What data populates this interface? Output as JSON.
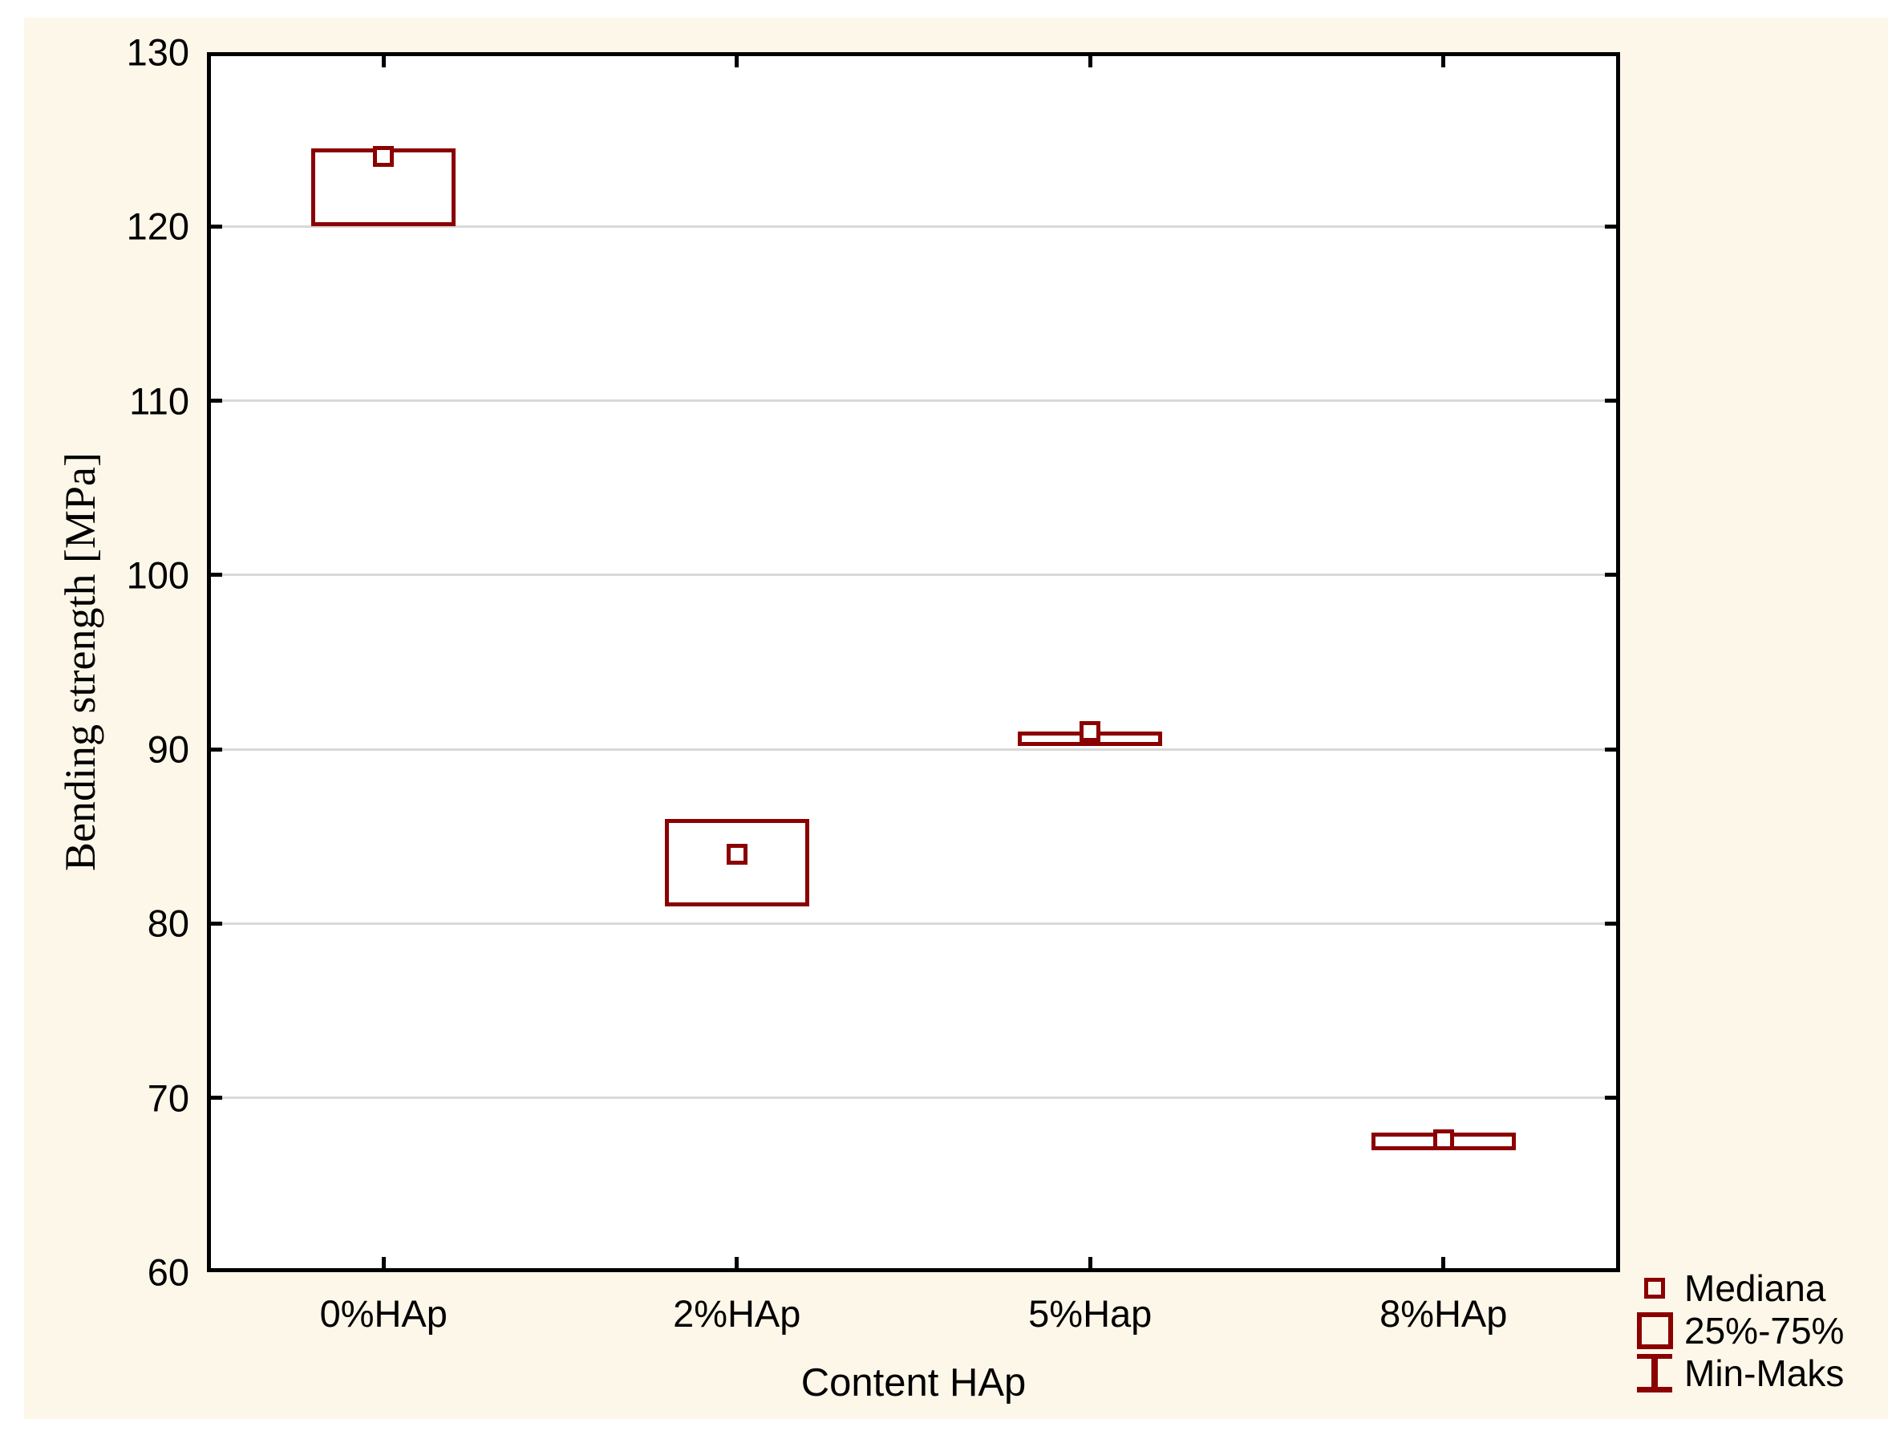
{
  "colors": {
    "canvas_background": "#fdf7e9",
    "plot_background": "#ffffff",
    "axis": "#000000",
    "gridline": "#d9d9d9",
    "series": "#8b0000",
    "text": "#000000"
  },
  "chart_data": {
    "type": "box",
    "xlabel": "Content HAp",
    "ylabel": "Bending strength [MPa]",
    "ylim": [
      60,
      130
    ],
    "y_ticks": [
      130,
      120,
      110,
      100,
      90,
      80,
      70,
      60
    ],
    "grid": "horizontal-only",
    "categories": [
      "0%HAp",
      "2%HAp",
      "5%Hap",
      "8%HAp"
    ],
    "series": [
      {
        "name": "0%HAp",
        "median": 124,
        "q1": 120,
        "q3": 124.5
      },
      {
        "name": "2%HAp",
        "median": 84,
        "q1": 81,
        "q3": 86
      },
      {
        "name": "5%Hap",
        "median": 91,
        "q1": 90.2,
        "q3": 91
      },
      {
        "name": "8%HAp",
        "median": 67.6,
        "q1": 67,
        "q3": 68
      }
    ],
    "whiskers_visible": false,
    "legend_position": "bottom-right",
    "legend": [
      {
        "symbol": "median-square",
        "label": "Mediana"
      },
      {
        "symbol": "iqr-box",
        "label": "25%-75%"
      },
      {
        "symbol": "min-max-whisker",
        "label": "Min-Maks"
      }
    ]
  }
}
